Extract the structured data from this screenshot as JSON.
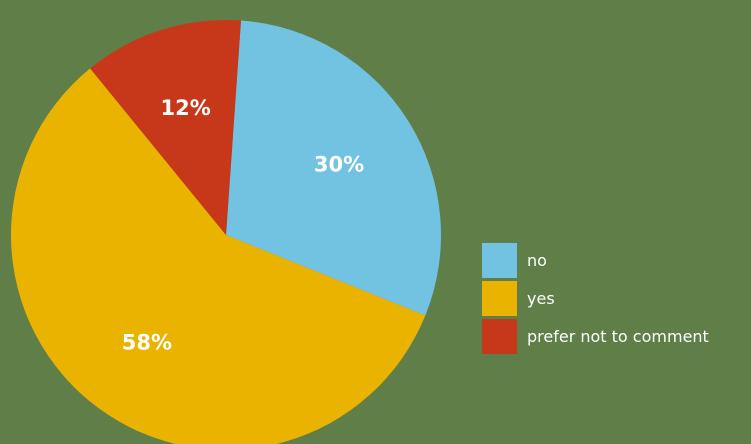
{
  "background_color": "#5f7e48",
  "chart_data": {
    "type": "pie",
    "title": "",
    "start_angle_deg": 4,
    "direction": "clockwise",
    "slices": [
      {
        "label": "no",
        "value": 30,
        "display": "30%",
        "color": "#72c3e2"
      },
      {
        "label": "yes",
        "value": 58,
        "display": "58%",
        "color": "#e9b300"
      },
      {
        "label": "prefer not to comment",
        "value": 12,
        "display": "12%",
        "color": "#c7381b"
      }
    ],
    "legend": {
      "placement": "right",
      "entries": [
        "no",
        "yes",
        "prefer not to comment"
      ]
    }
  }
}
